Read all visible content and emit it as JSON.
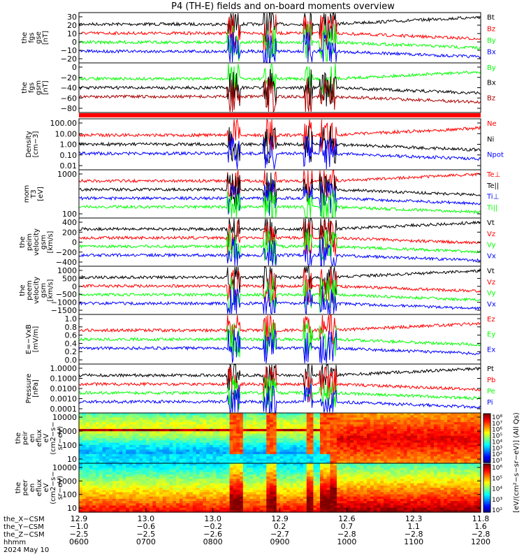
{
  "title": "P4 (TH-E) fields and on-board moments overview",
  "colors": {
    "black": "#000000",
    "red": "#ff0000",
    "green": "#00ff00",
    "blue": "#0000ff",
    "darkred": "#aa0000",
    "darkblue": "#00007f"
  },
  "chart_data": [
    {
      "type": "line",
      "ylabel": [
        "the",
        "fgs",
        "gse",
        "[nT]"
      ],
      "yticks": [
        "30",
        "20",
        "10",
        "0",
        "−10",
        "−20"
      ],
      "ylim": [
        -30,
        33
      ],
      "legend": [
        {
          "name": "Bt",
          "color": "#000000"
        },
        {
          "name": "Bz",
          "color": "#ff0000"
        },
        {
          "name": "By",
          "color": "#00ff00"
        },
        {
          "name": "Bx",
          "color": "#0000ff"
        }
      ]
    },
    {
      "type": "line",
      "ylabel": [
        "the",
        "fgs",
        "gsm",
        "[nT]"
      ],
      "yticks": [
        "0",
        "−20",
        "−40",
        "−60",
        "−80"
      ],
      "ylim": [
        -95,
        8
      ],
      "legend": [
        {
          "name": "By",
          "color": "#00ff00"
        },
        {
          "name": "Bx",
          "color": "#000000"
        },
        {
          "name": "Bz",
          "color": "#aa0000"
        }
      ]
    },
    {
      "type": "line",
      "ylabel": [
        "Density",
        "[cm−3]"
      ],
      "yticks": [
        "100.00",
        "10.00",
        "1.00",
        "0.10",
        "0.01"
      ],
      "yscale": "log",
      "legend": [
        {
          "name": "Ne",
          "color": "#ff0000"
        },
        {
          "name": "Ni",
          "color": "#000000"
        },
        {
          "name": "Npot",
          "color": "#0000ff"
        }
      ]
    },
    {
      "type": "line",
      "ylabel": [
        "mom",
        "T3",
        "[eV]"
      ],
      "yticks": [
        "1000",
        "100"
      ],
      "yscale": "log",
      "legend": [
        {
          "name": "Te⊥",
          "color": "#ff0000"
        },
        {
          "name": "Te||",
          "color": "#000000"
        },
        {
          "name": "Ti⊥",
          "color": "#0000ff"
        },
        {
          "name": "Ti||",
          "color": "#00ff00"
        }
      ]
    },
    {
      "type": "line",
      "ylabel": [
        "the",
        "peim",
        "velocity",
        "gsm",
        "[km/s]"
      ],
      "yticks": [
        "400",
        "200",
        "0",
        "−200",
        "−400"
      ],
      "ylim": [
        -420,
        420
      ],
      "legend": [
        {
          "name": "Vt",
          "color": "#000000"
        },
        {
          "name": "Vz",
          "color": "#ff0000"
        },
        {
          "name": "Vy",
          "color": "#00ff00"
        },
        {
          "name": "Vx",
          "color": "#0000ff"
        }
      ]
    },
    {
      "type": "line",
      "ylabel": [
        "the",
        "peem",
        "velocity",
        "gsm",
        "[km/s]"
      ],
      "yticks": [
        "1000",
        "500",
        "0",
        "−500",
        "−1000",
        "−1500"
      ],
      "ylim": [
        -1550,
        1350
      ],
      "legend": [
        {
          "name": "Vt",
          "color": "#000000"
        },
        {
          "name": "Vz",
          "color": "#ff0000"
        },
        {
          "name": "Vy",
          "color": "#00ff00"
        },
        {
          "name": "Vx",
          "color": "#0000ff"
        }
      ]
    },
    {
      "type": "line",
      "ylabel": [
        "E=−VxB",
        "[mV/m]"
      ],
      "yticks": [
        "1.0",
        "0.8",
        "0.6",
        "0.4",
        "0.2",
        "0.0"
      ],
      "ylim": [
        0,
        1
      ],
      "legend": [
        {
          "name": "Ez",
          "color": "#ff0000"
        },
        {
          "name": "Ey",
          "color": "#00ff00"
        },
        {
          "name": "Ex",
          "color": "#0000ff"
        }
      ]
    },
    {
      "type": "line",
      "ylabel": [
        "Pressure",
        "[nPa]"
      ],
      "yticks": [
        "1.0000",
        "0.1000",
        "0.0100",
        "0.0010",
        "0.0001"
      ],
      "yscale": "log",
      "legend": [
        {
          "name": "Pt",
          "color": "#000000"
        },
        {
          "name": "Pb",
          "color": "#ff0000"
        },
        {
          "name": "Pe",
          "color": "#00ff00"
        },
        {
          "name": "Pi",
          "color": "#0000ff"
        }
      ]
    },
    {
      "type": "heatmap",
      "ylabel": [
        "the",
        "peir",
        "en",
        "eflux",
        "eV",
        "(cm2−s−",
        "sr−eV)"
      ],
      "yticks": [
        "10000",
        "1000",
        "100",
        "10"
      ],
      "yscale": "log"
    },
    {
      "type": "heatmap",
      "ylabel": [
        "the",
        "peer",
        "en",
        "eflux",
        "eV",
        "(cm2−s−",
        "sr−eV)"
      ],
      "yticks": [
        "10000",
        "1000",
        "100",
        "10"
      ],
      "yscale": "log"
    }
  ],
  "colorbar": {
    "label": "[eV/(cm²−s−sr−eV)] (All Qs)",
    "ticks_top": [
      "10⁸",
      "10⁷",
      "10⁶",
      "10⁵",
      "10⁴",
      "10³",
      "10²",
      "10¹"
    ],
    "ticks_bottom": [
      "10⁶",
      "10⁵",
      "10⁴",
      "10³",
      "10²"
    ]
  },
  "xaxis": {
    "row_labels": [
      "the_X−CSM",
      "the_Y−CSM",
      "the_Z−CSM",
      "hhmm",
      "2024 May 10"
    ],
    "x_csm": [
      "12.9",
      "13.0",
      "13.0",
      "12.9",
      "12.6",
      "12.3",
      "11.8"
    ],
    "y_csm": [
      "−1.0",
      "−0.6",
      "−0.2",
      "0.2",
      "0.7",
      "1.1",
      "1.6"
    ],
    "z_csm": [
      "−2.5",
      "−2.5",
      "−2.6",
      "−2.7",
      "−2.8",
      "−2.8",
      "−2.8"
    ],
    "hhmm": [
      "0600",
      "0700",
      "0800",
      "0900",
      "1000",
      "1100",
      "1200"
    ]
  }
}
